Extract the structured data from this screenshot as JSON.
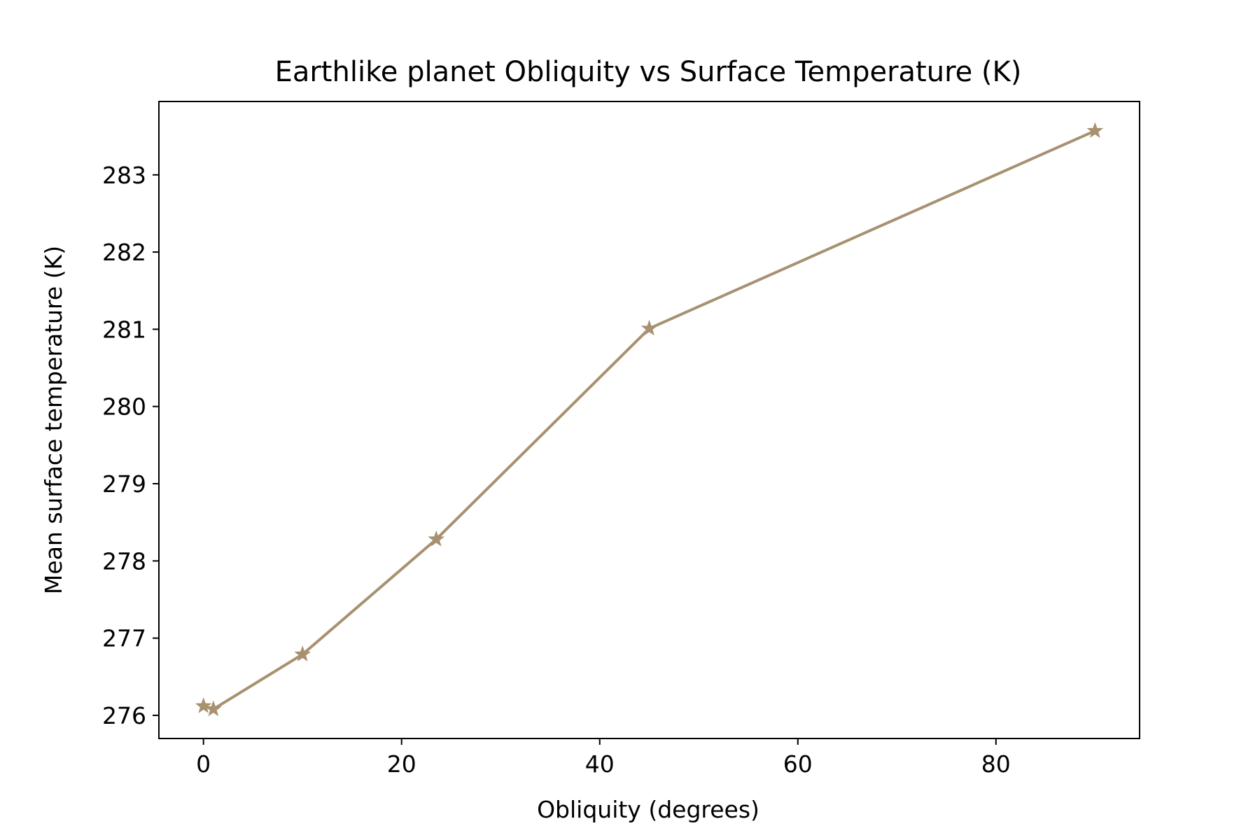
{
  "chart_data": {
    "type": "line",
    "title": "Earthlike planet Obliquity vs Surface Temperature (K)",
    "xlabel": "Obliquity (degrees)",
    "ylabel": "Mean surface temperature (K)",
    "xlim": [
      -4.5,
      94.5
    ],
    "ylim": [
      275.7,
      283.95
    ],
    "xticks": [
      0,
      20,
      40,
      60,
      80
    ],
    "yticks": [
      276,
      277,
      278,
      279,
      280,
      281,
      282,
      283
    ],
    "grid": false,
    "legend": "none",
    "marker": "star",
    "color": "#a89170",
    "series": [
      {
        "x": [
          0,
          1,
          10,
          23.5,
          45,
          90
        ],
        "values": [
          276.12,
          276.08,
          276.79,
          278.28,
          281.01,
          283.57
        ]
      }
    ]
  }
}
